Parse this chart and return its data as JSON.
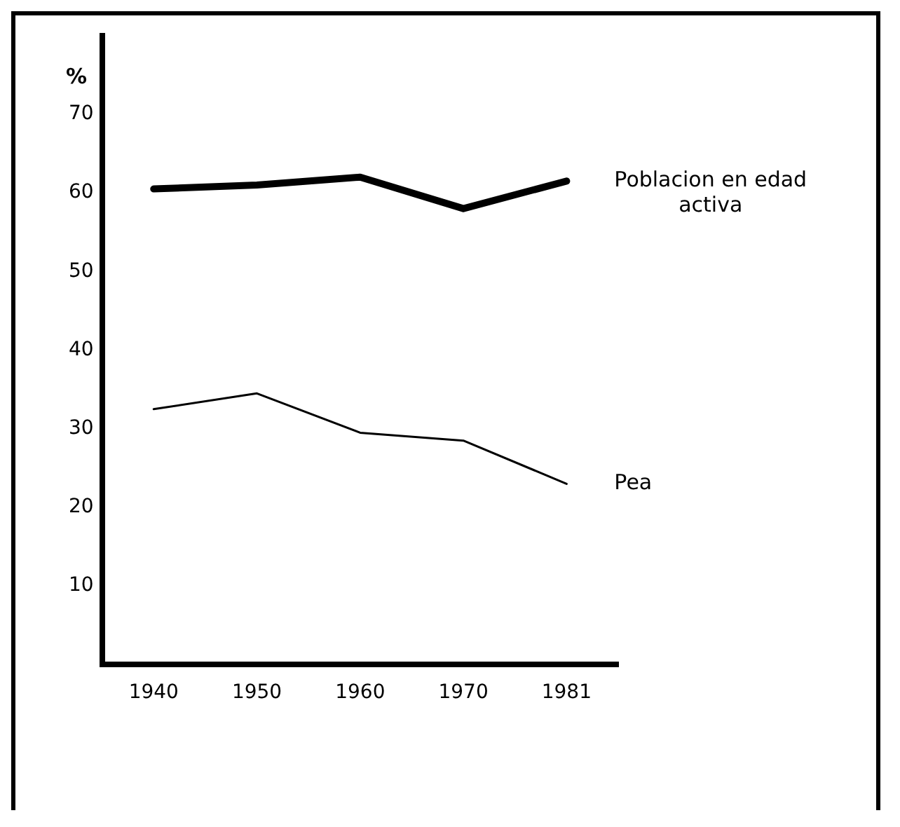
{
  "chart_data": {
    "type": "line",
    "ylabel": "%",
    "categories": [
      "1940",
      "1950",
      "1960",
      "1970",
      "1981"
    ],
    "series": [
      {
        "name": "Poblacion en edad activa",
        "color": "#000000",
        "values": [
          60.5,
          61,
          62,
          58,
          61.5
        ]
      },
      {
        "name": "Pea",
        "color": "#000000",
        "values": [
          32.5,
          34.5,
          29.5,
          28.5,
          23
        ]
      }
    ],
    "ylim": [
      0,
      80
    ],
    "yticks": [
      10,
      20,
      30,
      40,
      50,
      60,
      70
    ],
    "grid": false,
    "legend": false,
    "marker": "none",
    "line_style": "solid"
  }
}
